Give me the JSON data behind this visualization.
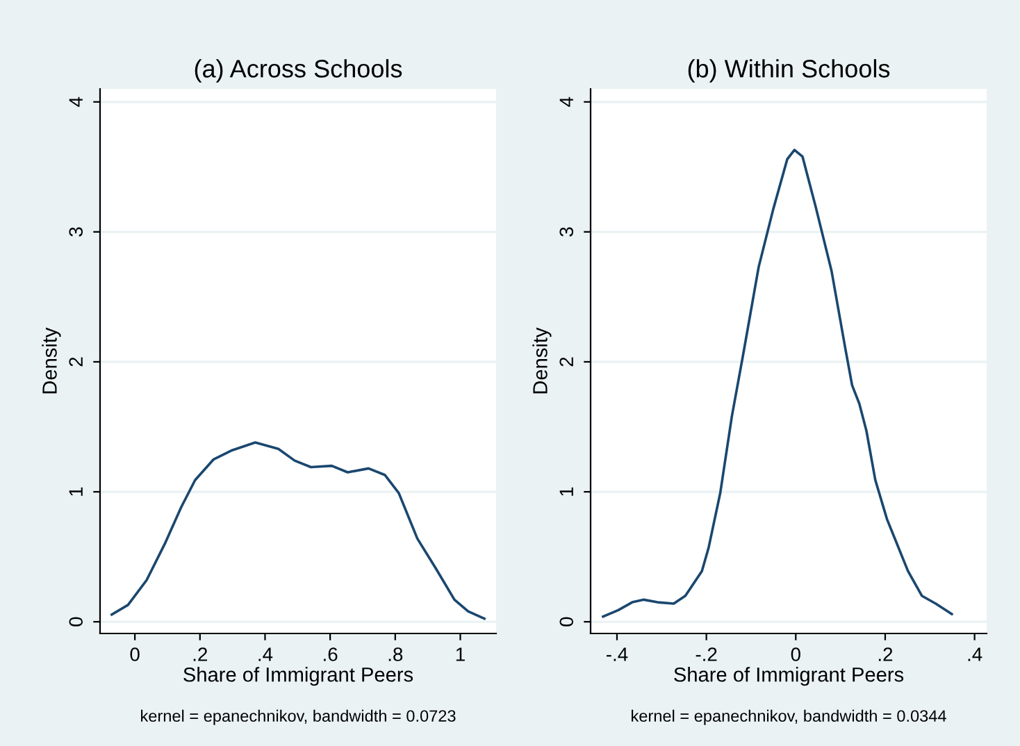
{
  "chart_data": [
    {
      "type": "line",
      "title": "(a) Across Schools",
      "xlabel": "Share of Immigrant Peers",
      "ylabel": "Density",
      "annotations": [
        "kernel = epanechnikov, bandwidth = 0.0723"
      ],
      "x": [
        -0.071,
        -0.021,
        0.036,
        0.092,
        0.142,
        0.185,
        0.242,
        0.299,
        0.37,
        0.441,
        0.491,
        0.541,
        0.605,
        0.654,
        0.718,
        0.768,
        0.811,
        0.868,
        0.925,
        0.982,
        1.024,
        1.074
      ],
      "series": [
        {
          "color": "#1a476f",
          "values": [
            0.056,
            0.13,
            0.32,
            0.6,
            0.88,
            1.09,
            1.25,
            1.32,
            1.38,
            1.33,
            1.24,
            1.19,
            1.2,
            1.15,
            1.18,
            1.13,
            0.99,
            0.64,
            0.41,
            0.17,
            0.08,
            0.024
          ]
        }
      ],
      "xlim": [
        -0.107,
        1.11
      ],
      "ylim": [
        -0.09,
        4.1
      ],
      "xticks": [
        0,
        {
          "value": 0.2,
          "label": ".2"
        },
        {
          "value": 0.4,
          "label": ".4"
        },
        {
          "value": 0.6,
          "label": ".6"
        },
        {
          "value": 0.8,
          "label": ".8"
        },
        1
      ],
      "yticks": [
        0,
        1,
        2,
        3,
        4
      ],
      "grid": "y",
      "legend": false
    },
    {
      "type": "line",
      "title": "(b) Within Schools",
      "xlabel": "Share of Immigrant Peers",
      "ylabel": "Density",
      "annotations": [
        "kernel = epanechnikov, bandwidth = 0.0344"
      ],
      "x": [
        -0.431,
        -0.397,
        -0.366,
        -0.34,
        -0.309,
        -0.273,
        -0.247,
        -0.21,
        -0.195,
        -0.169,
        -0.143,
        -0.117,
        -0.083,
        -0.05,
        -0.019,
        -0.003,
        0.015,
        0.044,
        0.08,
        0.111,
        0.126,
        0.142,
        0.158,
        0.178,
        0.204,
        0.251,
        0.282,
        0.313,
        0.349
      ],
      "series": [
        {
          "color": "#1a476f",
          "values": [
            0.04,
            0.09,
            0.15,
            0.17,
            0.15,
            0.14,
            0.2,
            0.39,
            0.57,
            0.99,
            1.58,
            2.07,
            2.73,
            3.18,
            3.56,
            3.63,
            3.58,
            3.2,
            2.7,
            2.1,
            1.82,
            1.68,
            1.47,
            1.09,
            0.79,
            0.39,
            0.2,
            0.14,
            0.06
          ]
        }
      ],
      "xlim": [
        -0.459,
        0.427
      ],
      "ylim": [
        -0.09,
        4.1
      ],
      "xticks": [
        {
          "value": -0.4,
          "label": "-.4"
        },
        {
          "value": -0.2,
          "label": "-.2"
        },
        0,
        {
          "value": 0.2,
          "label": ".2"
        },
        {
          "value": 0.4,
          "label": ".4"
        }
      ],
      "yticks": [
        0,
        1,
        2,
        3,
        4
      ],
      "grid": "y",
      "legend": false
    }
  ]
}
